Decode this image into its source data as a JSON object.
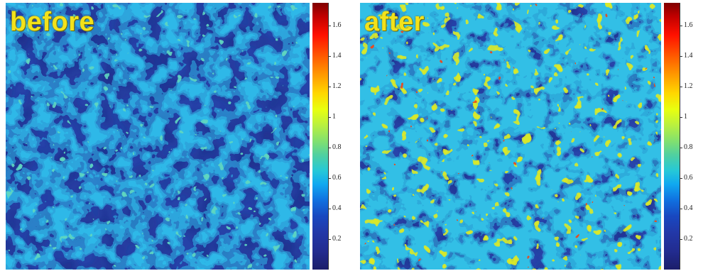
{
  "panels": [
    {
      "label": "before",
      "intensity": "low"
    },
    {
      "label": "after",
      "intensity": "high"
    }
  ],
  "colorbar": {
    "ticks": [
      "1.6",
      "1.4",
      "1.2",
      "1",
      "0.8",
      "0.6",
      "0.4",
      "0.2"
    ],
    "colormap": "jet",
    "range": [
      0,
      1.75
    ]
  },
  "colors": {
    "label_yellow": "#f3e21a",
    "background_blue": "#22389e"
  }
}
